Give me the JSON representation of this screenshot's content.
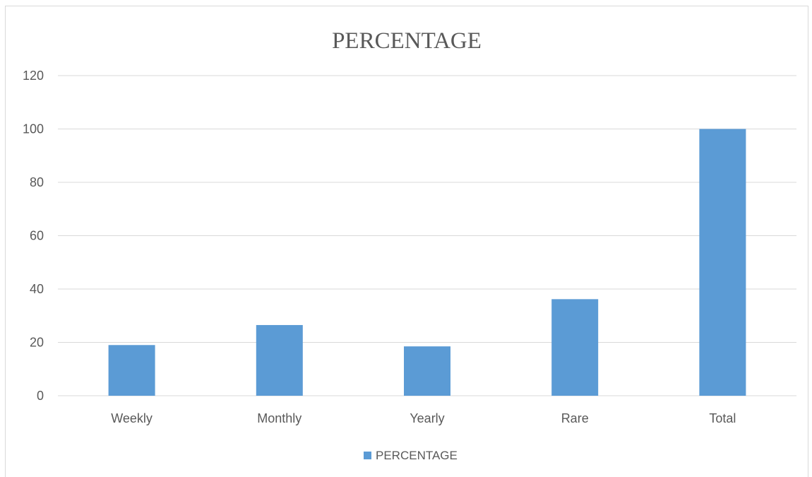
{
  "chart_data": {
    "type": "bar",
    "title": "PERCENTAGE",
    "categories": [
      "Weekly",
      "Monthly",
      "Yearly",
      "Rare",
      "Total"
    ],
    "series": [
      {
        "name": "PERCENTAGE",
        "values": [
          19,
          26.5,
          18.5,
          36.2,
          100
        ]
      }
    ],
    "ylim": [
      0,
      120
    ],
    "yticks": [
      "0",
      "20",
      "40",
      "60",
      "80",
      "100",
      "120"
    ],
    "grid": true,
    "legend_position": "bottom",
    "colors": {
      "bar": "#5b9bd5",
      "grid": "#d9d9d9",
      "text": "#595959"
    }
  }
}
